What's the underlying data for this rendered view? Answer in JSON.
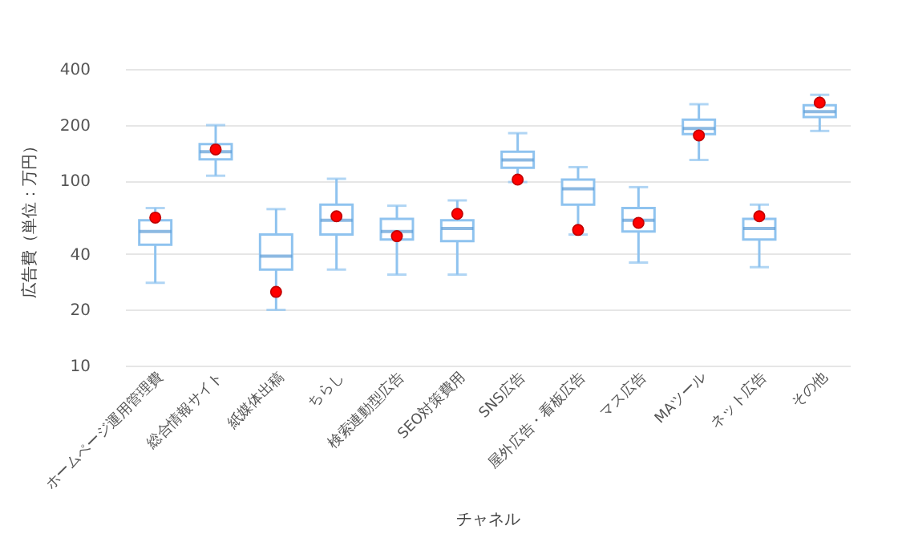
{
  "chart_data": {
    "type": "box",
    "xlabel": "チャネル",
    "ylabel": "広告費（単位：万円）",
    "categories": [
      "ホームページ運用管理費",
      "総合情報サイト",
      "紙媒体出稿",
      "ちらし",
      "検索連動型広告",
      "SEO対策費用",
      "SNS広告",
      "屋外広告・看板広告",
      "マス広告",
      "MAツール",
      "ネット広告",
      "その他"
    ],
    "color": "#8fc3ef",
    "boxes": [
      {
        "low": 28,
        "q1": 45,
        "median": 53,
        "q3": 61,
        "high": 71,
        "mean": 63
      },
      {
        "low": 106,
        "q1": 130,
        "median": 143,
        "q3": 157,
        "high": 199,
        "mean": 147
      },
      {
        "low": 20,
        "q1": 33,
        "median": 39,
        "q3": 51,
        "high": 70,
        "mean": 25
      },
      {
        "low": 33,
        "q1": 51,
        "median": 61,
        "q3": 74,
        "high": 102,
        "mean": 64
      },
      {
        "low": 31,
        "q1": 48,
        "median": 53,
        "q3": 62,
        "high": 73,
        "mean": 50
      },
      {
        "low": 31,
        "q1": 47,
        "median": 55,
        "q3": 61,
        "high": 78,
        "mean": 66
      },
      {
        "low": 98,
        "q1": 117,
        "median": 129,
        "q3": 143,
        "high": 180,
        "mean": 101
      },
      {
        "low": 51,
        "q1": 74,
        "median": 90,
        "q3": 101,
        "high": 118,
        "mean": 54
      },
      {
        "low": 36,
        "q1": 53,
        "median": 61,
        "q3": 71,
        "high": 92,
        "mean": 59
      },
      {
        "low": 129,
        "q1": 178,
        "median": 191,
        "q3": 213,
        "high": 258,
        "mean": 175
      },
      {
        "low": 34,
        "q1": 48,
        "median": 55,
        "q3": 62,
        "high": 74,
        "mean": 64
      },
      {
        "low": 185,
        "q1": 220,
        "median": 235,
        "q3": 255,
        "high": 290,
        "mean": 263
      }
    ],
    "log": true,
    "ylim": [
      10,
      400
    ],
    "yticks": [
      10,
      20,
      40,
      100,
      200,
      400
    ],
    "grid": "y"
  }
}
